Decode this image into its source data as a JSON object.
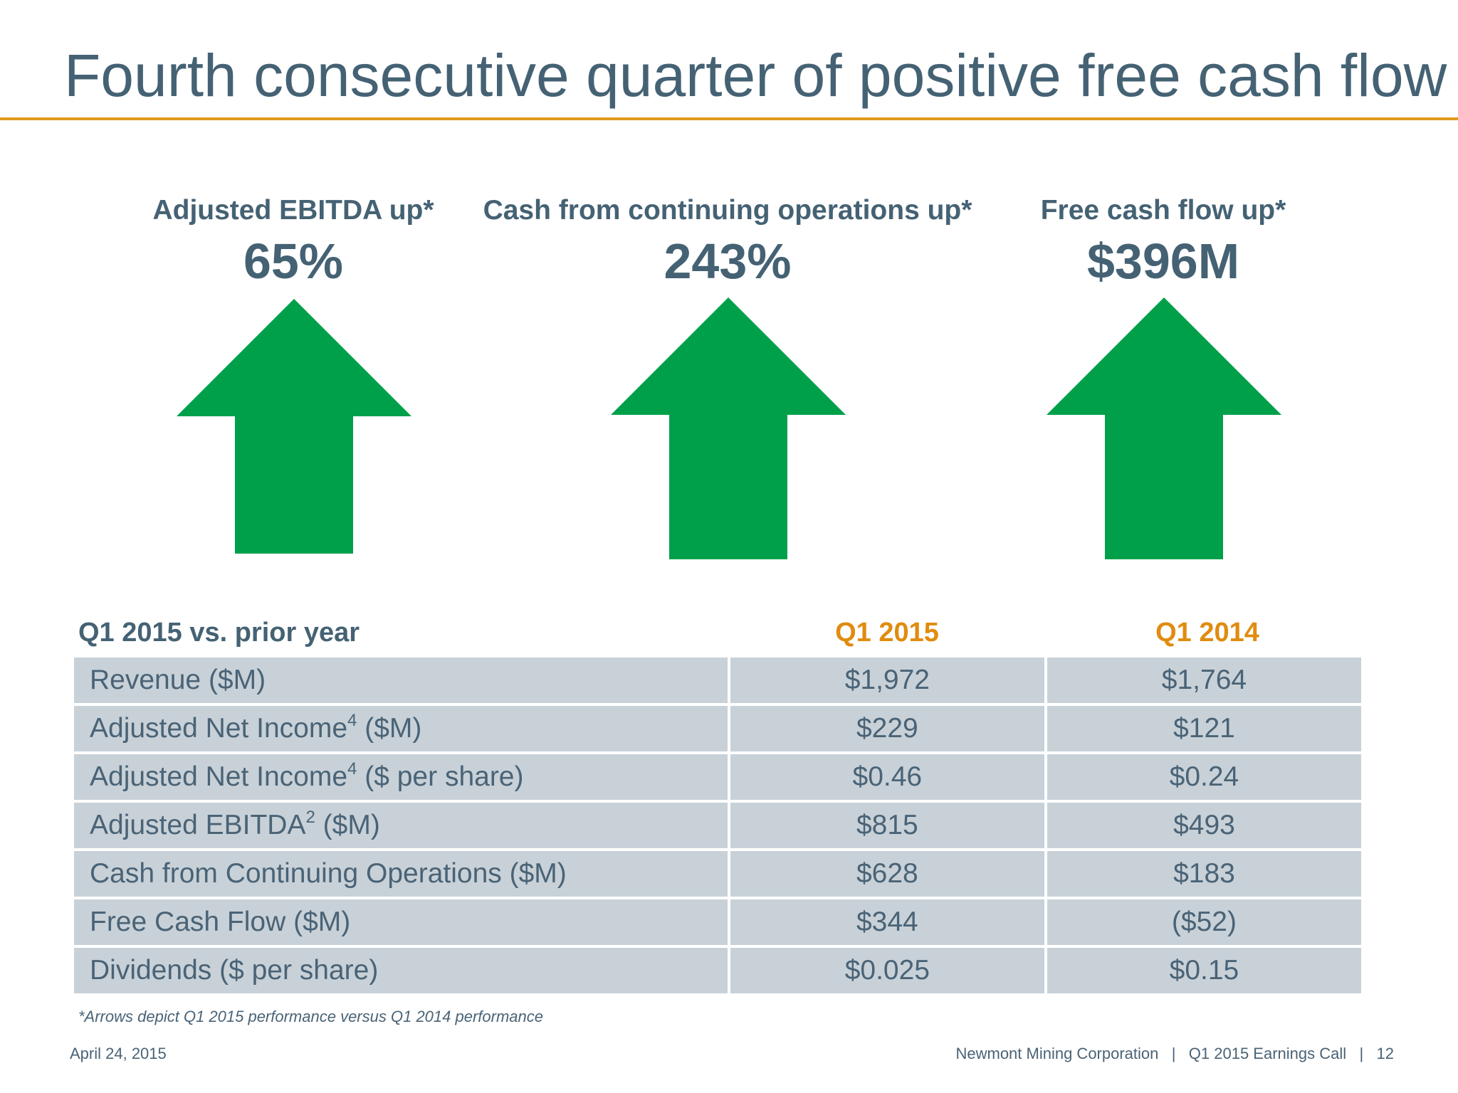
{
  "title": "Fourth consecutive quarter of positive free cash flow",
  "metrics": [
    {
      "label": "Adjusted EBITDA up*",
      "value": "65%"
    },
    {
      "label": "Cash from continuing operations up*",
      "value": "243%"
    },
    {
      "label": "Free cash flow up*",
      "value": "$396M"
    }
  ],
  "colors": {
    "title": "#456274",
    "rule": "#e09a1e",
    "arrow": "#00a04b",
    "column_header": "#e08c10",
    "cell_bg": "#c8d1d8"
  },
  "table": {
    "label": "Q1 2015 vs. prior year",
    "col1": "Q1 2015",
    "col2": "Q1 2014",
    "rows": [
      {
        "label": "Revenue ($M)",
        "sup": "",
        "suffix": "",
        "q1_2015": "$1,972",
        "q1_2014": "$1,764"
      },
      {
        "label": "Adjusted Net Income",
        "sup": "4",
        "suffix": " ($M)",
        "q1_2015": "$229",
        "q1_2014": "$121"
      },
      {
        "label": "Adjusted Net Income",
        "sup": "4",
        "suffix": " ($ per share)",
        "q1_2015": "$0.46",
        "q1_2014": "$0.24"
      },
      {
        "label": "Adjusted EBITDA",
        "sup": "2",
        "suffix": " ($M)",
        "q1_2015": "$815",
        "q1_2014": "$493"
      },
      {
        "label": "Cash from Continuing Operations ($M)",
        "sup": "",
        "suffix": "",
        "q1_2015": "$628",
        "q1_2014": "$183"
      },
      {
        "label": "Free Cash Flow ($M)",
        "sup": "",
        "suffix": "",
        "q1_2015": "$344",
        "q1_2014": "($52)"
      },
      {
        "label": "Dividends ($ per share)",
        "sup": "",
        "suffix": "",
        "q1_2015": "$0.025",
        "q1_2014": "$0.15"
      }
    ]
  },
  "footnote": "*Arrows depict Q1 2015 performance versus Q1 2014 performance",
  "footer": {
    "date": "April 24, 2015",
    "right": "Newmont Mining Corporation   |   Q1 2015 Earnings Call   |   12"
  }
}
